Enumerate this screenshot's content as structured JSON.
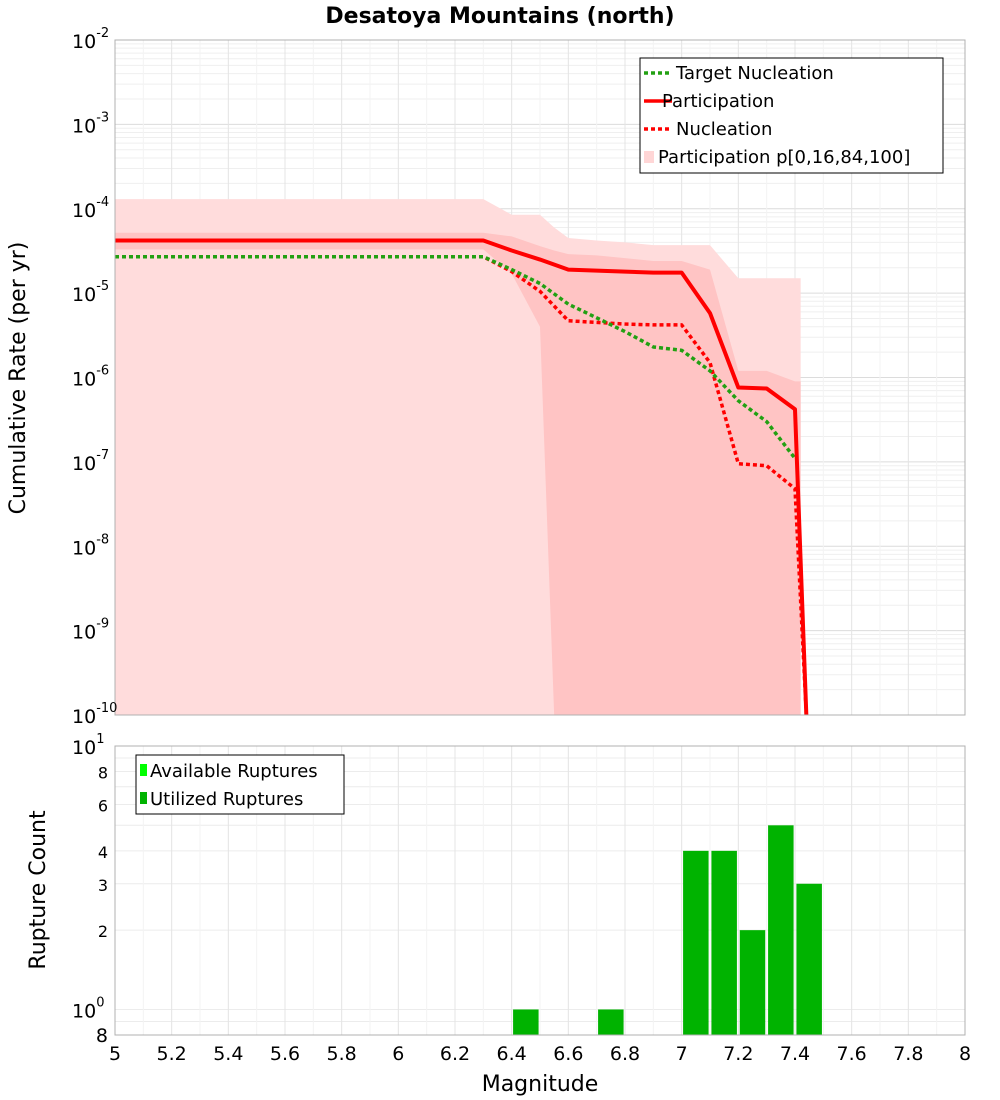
{
  "title": "Desatoya Mountains (north)",
  "chart_data": [
    {
      "type": "line",
      "ylabel": "Cumulative Rate (per yr)",
      "yscale": "log",
      "xlim": [
        5,
        8
      ],
      "ylim": [
        1e-10,
        0.01
      ],
      "y_tick_labels": [
        {
          "base": "10",
          "exp": "-10"
        },
        {
          "base": "10",
          "exp": "-9"
        },
        {
          "base": "10",
          "exp": "-8"
        },
        {
          "base": "10",
          "exp": "-7"
        },
        {
          "base": "10",
          "exp": "-6"
        },
        {
          "base": "10",
          "exp": "-5"
        },
        {
          "base": "10",
          "exp": "-4"
        },
        {
          "base": "10",
          "exp": "-3"
        },
        {
          "base": "10",
          "exp": "-2"
        }
      ],
      "grid": true,
      "legend_position": "top-right",
      "legend": [
        {
          "label": "Target Nucleation",
          "color": "#22a012",
          "style": "dotted"
        },
        {
          "label": "Participation",
          "color": "#ff0000",
          "style": "solid"
        },
        {
          "label": "Nucleation",
          "color": "#ff0000",
          "style": "dotted"
        },
        {
          "label": "Participation p[0,16,84,100]",
          "color": "#ffd6d6",
          "style": "band"
        }
      ],
      "series": [
        {
          "name": "Target Nucleation",
          "color": "#22a012",
          "x": [
            5.0,
            6.3,
            6.4,
            6.5,
            6.6,
            6.7,
            6.8,
            6.9,
            7.0,
            7.1,
            7.2,
            7.3,
            7.4
          ],
          "y": [
            2.7e-05,
            2.7e-05,
            1.9e-05,
            1.3e-05,
            7.4e-06,
            5.1e-06,
            3.5e-06,
            2.3e-06,
            2.1e-06,
            1.2e-06,
            5.3e-07,
            3e-07,
            1.1e-07
          ]
        },
        {
          "name": "Participation",
          "color": "#ff0000",
          "x": [
            5.0,
            6.3,
            6.4,
            6.5,
            6.6,
            6.7,
            6.8,
            6.9,
            7.0,
            7.1,
            7.2,
            7.3,
            7.4,
            7.44
          ],
          "y": [
            4.2e-05,
            4.2e-05,
            3.2e-05,
            2.5e-05,
            1.9e-05,
            1.85e-05,
            1.8e-05,
            1.75e-05,
            1.75e-05,
            5.8e-06,
            7.6e-07,
            7.4e-07,
            4.2e-07,
            1e-10
          ]
        },
        {
          "name": "Nucleation",
          "color": "#ff0000",
          "x": [
            5.0,
            6.3,
            6.4,
            6.5,
            6.6,
            6.7,
            6.8,
            6.9,
            7.0,
            7.1,
            7.2,
            7.3,
            7.4,
            7.44
          ],
          "y": [
            2.7e-05,
            2.7e-05,
            1.8e-05,
            1.05e-05,
            4.7e-06,
            4.5e-06,
            4.3e-06,
            4.2e-06,
            4.2e-06,
            1.5e-06,
            9.5e-08,
            9e-08,
            4.8e-08,
            1e-10
          ]
        }
      ],
      "bands": [
        {
          "name": "p0-p100",
          "color": "#ffdcdc",
          "x": [
            5.0,
            6.3,
            6.4,
            6.5,
            6.55,
            6.6,
            6.7,
            6.8,
            6.9,
            7.0,
            7.1,
            7.2,
            7.3,
            7.4,
            7.42
          ],
          "upper": [
            0.00013,
            0.00013,
            8.5e-05,
            8.5e-05,
            6e-05,
            4.5e-05,
            4.2e-05,
            4e-05,
            3.7e-05,
            3.7e-05,
            3.7e-05,
            1.5e-05,
            1.5e-05,
            1.5e-05,
            1.5e-05
          ],
          "lower": [
            1e-10,
            1e-10,
            1e-10,
            1e-10,
            1e-10,
            1e-10,
            1e-10,
            1e-10,
            1e-10,
            1e-10,
            1e-10,
            1e-10,
            1e-10,
            1e-10,
            1e-10
          ]
        },
        {
          "name": "p16-p84",
          "color": "#ffc4c4",
          "x": [
            5.0,
            6.3,
            6.4,
            6.5,
            6.55,
            6.6,
            6.7,
            6.8,
            6.9,
            7.0,
            7.1,
            7.2,
            7.3,
            7.4,
            7.42
          ],
          "upper": [
            5.2e-05,
            5.2e-05,
            4.7e-05,
            3.6e-05,
            3.2e-05,
            2.9e-05,
            2.8e-05,
            2.6e-05,
            2.4e-05,
            2.4e-05,
            1.9e-05,
            1.2e-06,
            1.2e-06,
            9e-07,
            9e-07
          ],
          "lower": [
            3.3e-05,
            3.3e-05,
            1.7e-05,
            4e-06,
            1e-10,
            1e-10,
            1e-10,
            1e-10,
            1e-10,
            1e-10,
            1e-10,
            1e-10,
            1e-10,
            1e-10,
            1e-10
          ]
        }
      ]
    },
    {
      "type": "bar",
      "xlabel": "Magnitude",
      "ylabel": "Rupture Count",
      "yscale": "log",
      "xlim": [
        5,
        8
      ],
      "ylim": [
        0.8,
        10
      ],
      "x_ticks": [
        "5",
        "5.2",
        "5.4",
        "5.6",
        "5.8",
        "6",
        "6.2",
        "6.4",
        "6.6",
        "6.8",
        "7",
        "7.2",
        "7.4",
        "7.6",
        "7.8",
        "8"
      ],
      "y_minor_tick_labels": [
        "8",
        "2",
        "3",
        "4",
        "6",
        "8"
      ],
      "y_major_tick_labels": [
        {
          "base": "10",
          "exp": "0"
        },
        {
          "base": "10",
          "exp": "1"
        }
      ],
      "grid": true,
      "legend_position": "top-left",
      "legend": [
        {
          "label": "Available Ruptures",
          "color": "#00ff00"
        },
        {
          "label": "Utilized Ruptures",
          "color": "#00b300"
        }
      ],
      "series": [
        {
          "name": "Utilized Ruptures",
          "color": "#00b300",
          "x": [
            6.45,
            6.75,
            7.05,
            7.15,
            7.25,
            7.35,
            7.45
          ],
          "values": [
            1,
            1,
            4,
            4,
            2,
            5,
            3
          ]
        }
      ]
    }
  ]
}
